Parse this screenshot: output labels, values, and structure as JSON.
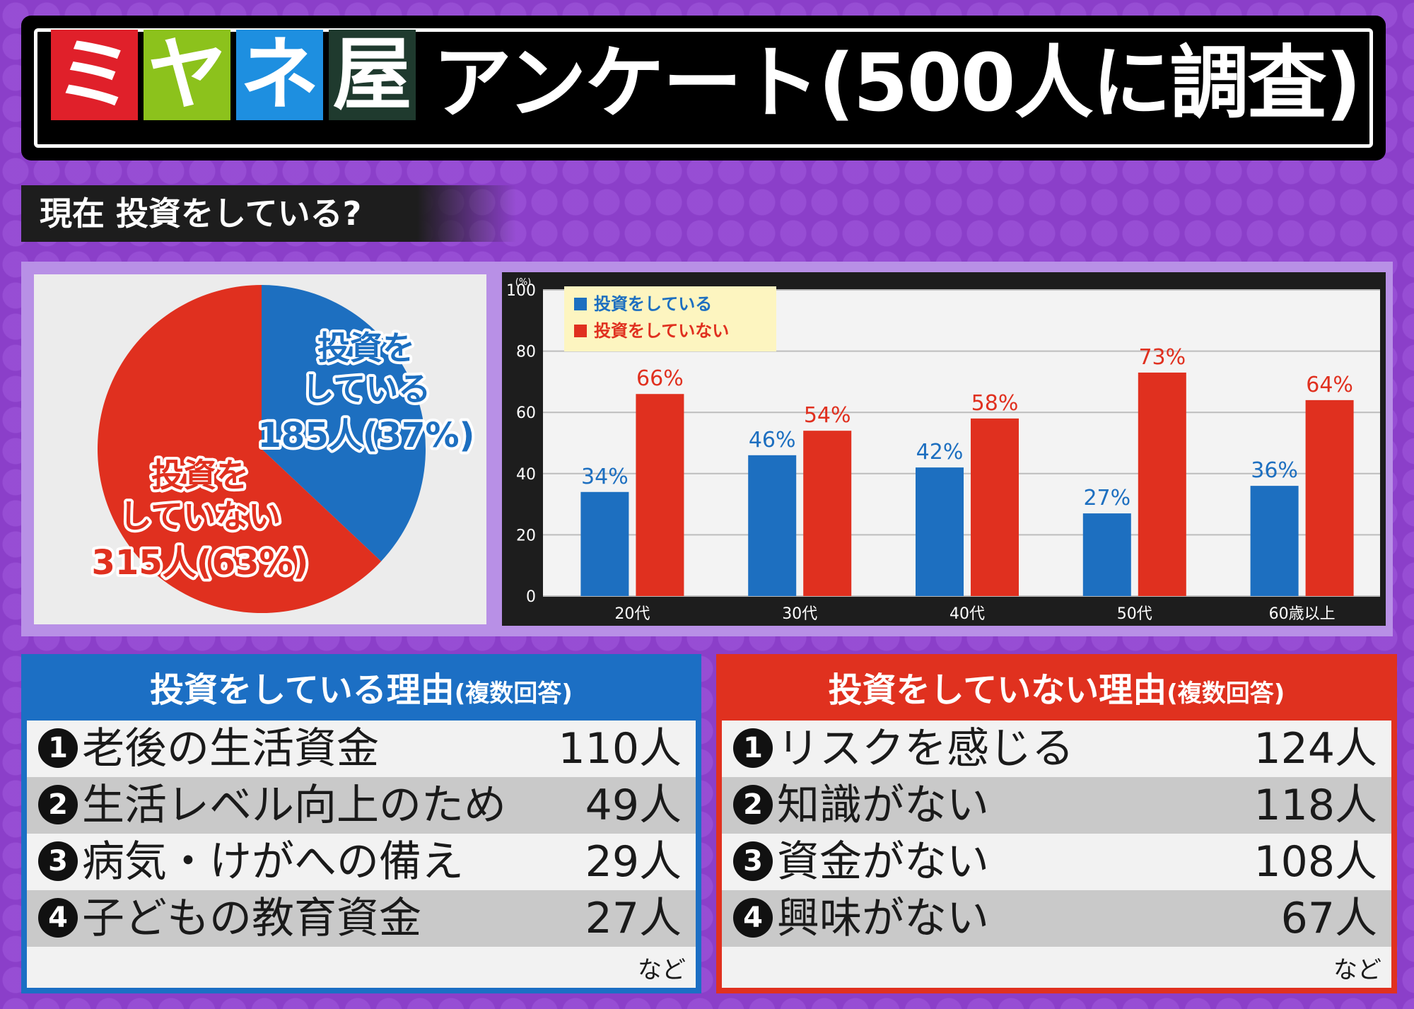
{
  "header": {
    "logo_chars": [
      "ミ",
      "ヤ",
      "ネ",
      "屋"
    ],
    "title": "アンケート(500人に調査)",
    "colors": {
      "logo1": "#e0202a",
      "logo2": "#8cc21c",
      "logo3": "#1e8fe0",
      "logo4": "#1f3a2e"
    }
  },
  "question": "現在 投資をしている?",
  "chart_data": [
    {
      "type": "pie",
      "slices": [
        {
          "label_lines": [
            "投資を",
            "している"
          ],
          "count_text": "185人(37%)",
          "value": 37,
          "color": "#1d6fc0"
        },
        {
          "label_lines": [
            "投資を",
            "していない"
          ],
          "count_text": "315人(63%)",
          "value": 63,
          "color": "#e0301f"
        }
      ]
    },
    {
      "type": "bar",
      "categories": [
        "20代",
        "30代",
        "40代",
        "50代",
        "60歳以上"
      ],
      "series": [
        {
          "name": "投資をしている",
          "values": [
            34,
            46,
            42,
            27,
            36
          ],
          "color": "#1d6fc0"
        },
        {
          "name": "投資をしていない",
          "values": [
            66,
            54,
            58,
            73,
            64
          ],
          "color": "#e0301f"
        }
      ],
      "ylabel": "(%)",
      "ylim": [
        0,
        100
      ],
      "yticks": [
        0,
        20,
        40,
        60,
        80,
        100
      ],
      "grid": true,
      "legend_position": "top-left",
      "value_suffix": "%"
    }
  ],
  "reasons_invest": {
    "title": "投資をしている理由",
    "subtitle": "(複数回答)",
    "items": [
      {
        "num": "1",
        "label": "老後の生活資金",
        "count": "110人"
      },
      {
        "num": "2",
        "label": "生活レベル向上のため",
        "count": "49人"
      },
      {
        "num": "3",
        "label": "病気・けがへの備え",
        "count": "29人"
      },
      {
        "num": "4",
        "label": "子どもの教育資金",
        "count": "27人"
      }
    ],
    "note": "など"
  },
  "reasons_not_invest": {
    "title": "投資をしていない理由",
    "subtitle": "(複数回答)",
    "items": [
      {
        "num": "1",
        "label": "リスクを感じる",
        "count": "124人"
      },
      {
        "num": "2",
        "label": "知識がない",
        "count": "118人"
      },
      {
        "num": "3",
        "label": "資金がない",
        "count": "108人"
      },
      {
        "num": "4",
        "label": "興味がない",
        "count": "67人"
      }
    ],
    "note": "など"
  }
}
